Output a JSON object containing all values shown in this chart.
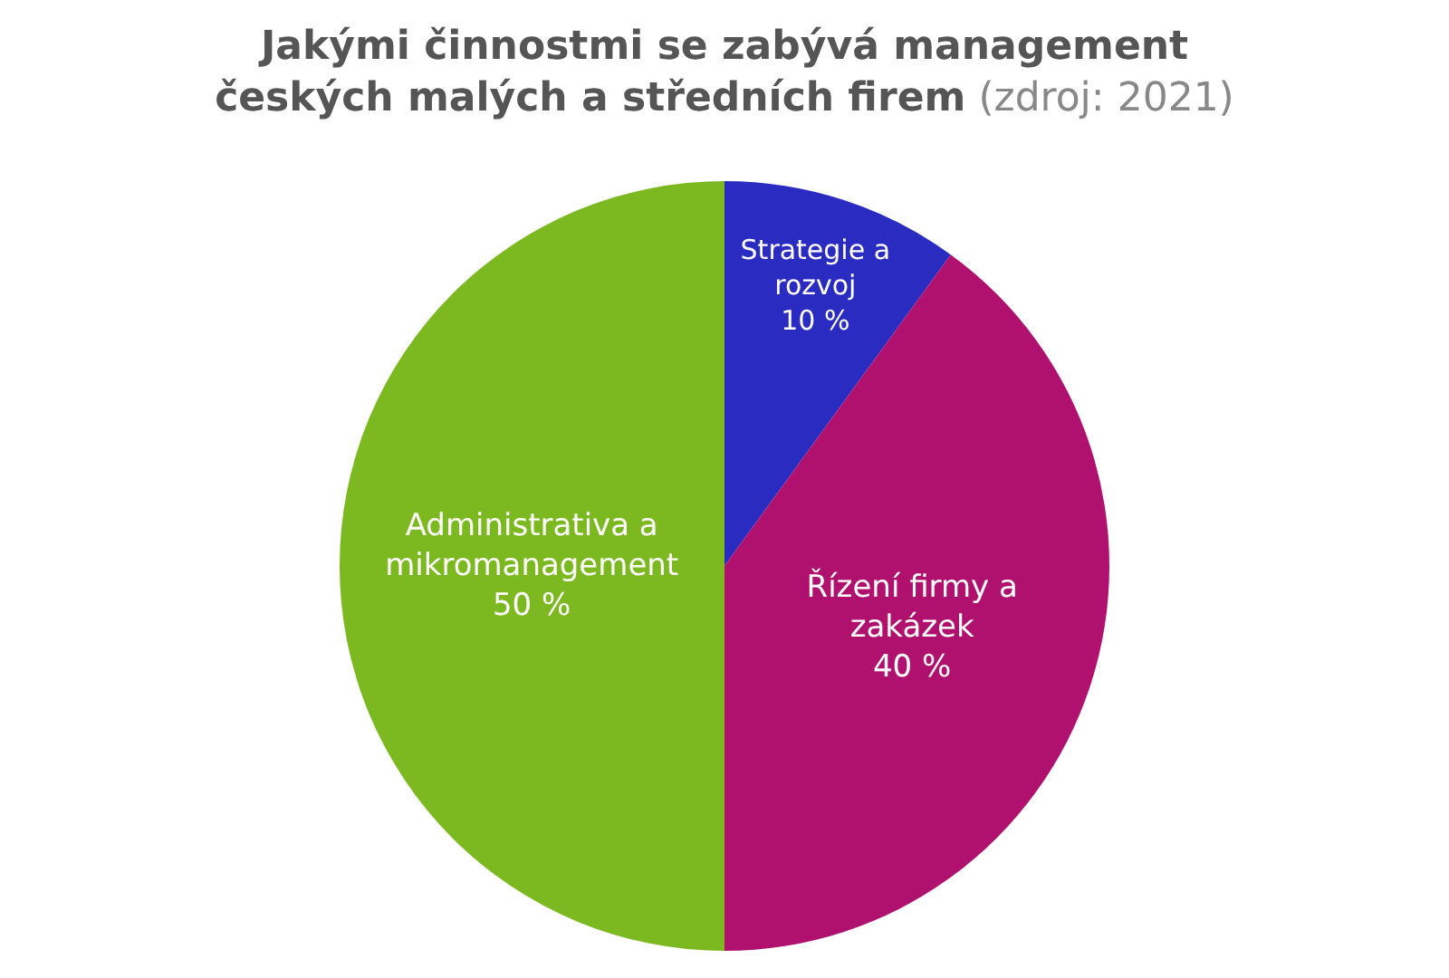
{
  "chart_data": {
    "type": "pie",
    "title": "Jakými činnostmi se zabývá management českých malých a středních firem",
    "subtitle": "(zdroj: 2021)",
    "categories": [
      "Strategie a rozvoj",
      "Řízení firmy a zakázek",
      "Administrativa a mikromanagement"
    ],
    "values": [
      10,
      40,
      50
    ],
    "value_labels": [
      "10 %",
      "40 %",
      "50 %"
    ],
    "colors": [
      "#2a2bc0",
      "#b0106e",
      "#7cb820"
    ],
    "legend": false
  }
}
